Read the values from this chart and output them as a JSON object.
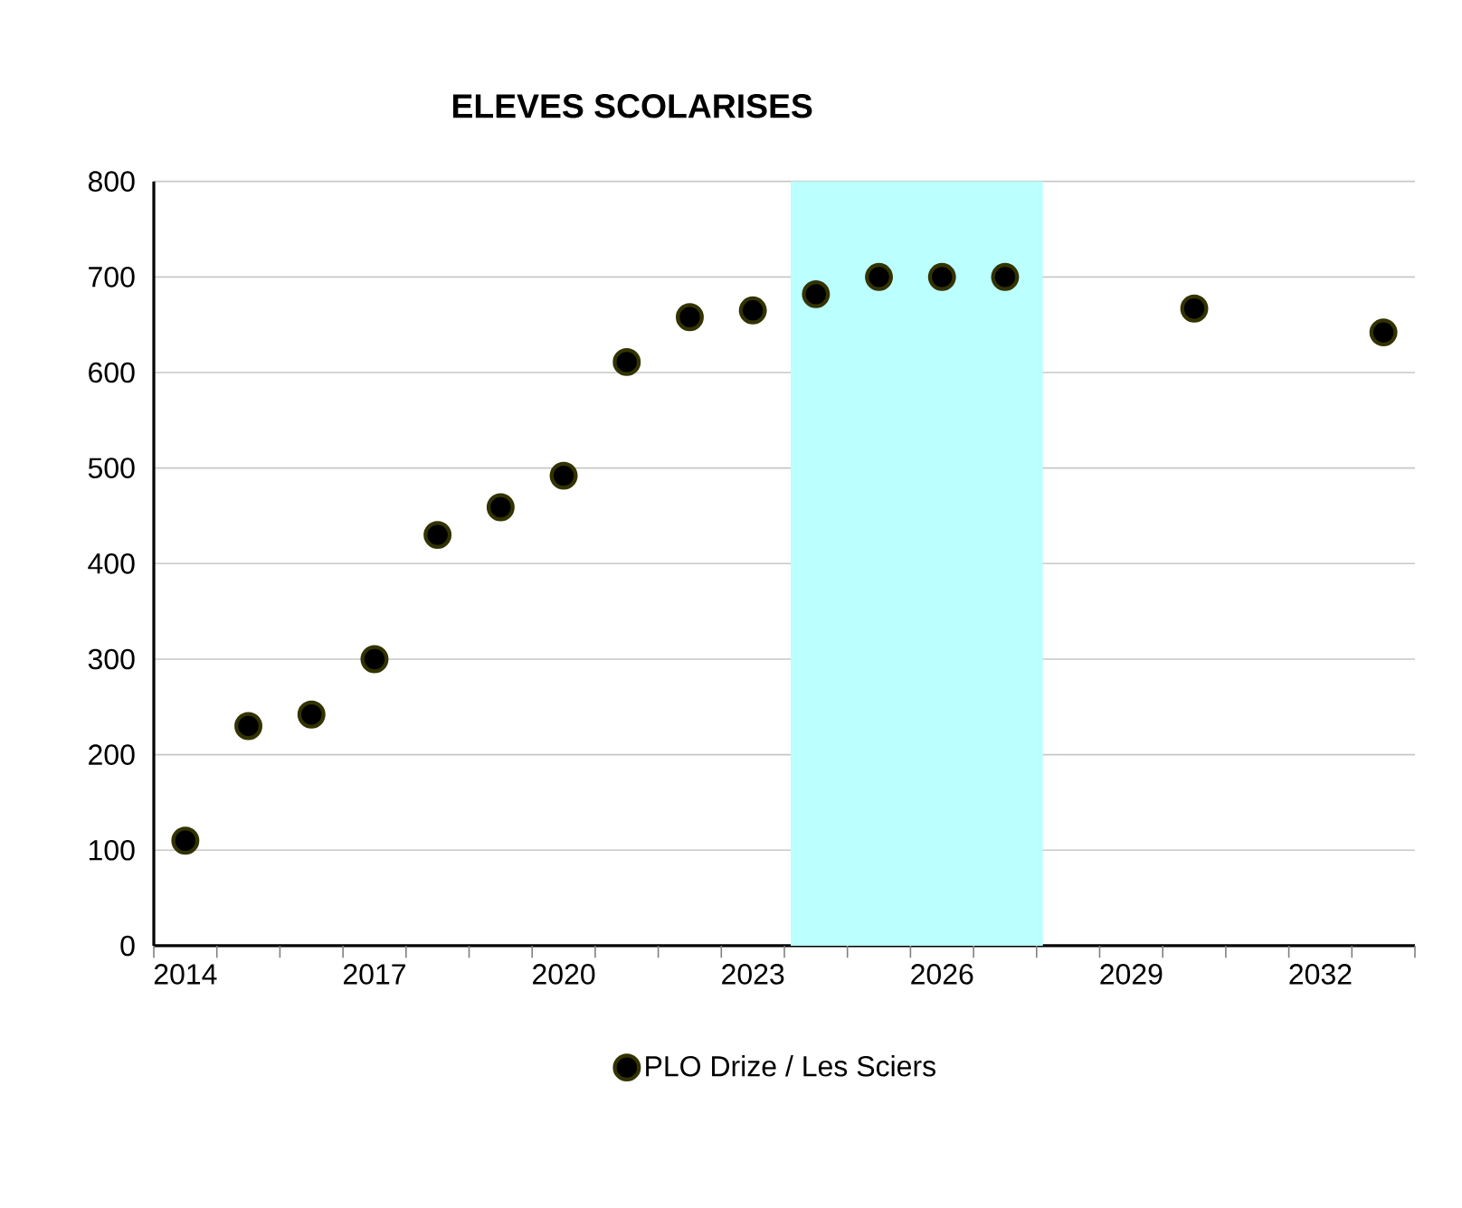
{
  "chart_data": {
    "type": "scatter",
    "title": "ELEVES SCOLARISES",
    "x": [
      2014,
      2015,
      2016,
      2017,
      2018,
      2019,
      2020,
      2021,
      2022,
      2023,
      2024,
      2025,
      2026,
      2027,
      2030,
      2033
    ],
    "series": [
      {
        "name": "PLO Drize / Les Sciers",
        "color": "#000000",
        "values": [
          110,
          230,
          242,
          300,
          430,
          459,
          492,
          611,
          658,
          665,
          682,
          700,
          700,
          700,
          667,
          642
        ]
      }
    ],
    "xlim": [
      2013.5,
      2033.5
    ],
    "xticks": [
      2014,
      2017,
      2020,
      2023,
      2026,
      2029,
      2032,
      {
        "value": 2013.5,
        "label": null
      },
      {
        "value": 2014.5,
        "label": null
      },
      {
        "value": 2015.5,
        "label": null
      },
      {
        "value": 2016.5,
        "label": null
      },
      {
        "value": 2017.5,
        "label": null
      },
      {
        "value": 2018.5,
        "label": null
      },
      {
        "value": 2019.5,
        "label": null
      },
      {
        "value": 2020.5,
        "label": null
      },
      {
        "value": 2021.5,
        "label": null
      },
      {
        "value": 2022.5,
        "label": null
      },
      {
        "value": 2023.5,
        "label": null
      },
      {
        "value": 2024.5,
        "label": null
      },
      {
        "value": 2025.5,
        "label": null
      },
      {
        "value": 2026.5,
        "label": null
      },
      {
        "value": 2027.5,
        "label": null
      },
      {
        "value": 2028.5,
        "label": null
      },
      {
        "value": 2029.5,
        "label": null
      },
      {
        "value": 2030.5,
        "label": null
      },
      {
        "value": 2031.5,
        "label": null
      },
      {
        "value": 2032.5,
        "label": null
      },
      {
        "value": 2033.5,
        "label": null
      }
    ],
    "ylim": [
      0,
      800
    ],
    "yticks": [
      0,
      100,
      200,
      300,
      400,
      500,
      600,
      700,
      800
    ],
    "bands": [
      {
        "axis": "x",
        "from": 2023.6,
        "to": 2027.6,
        "color": "#bbffff"
      }
    ],
    "grid": "y",
    "legend": "bottom",
    "marker": "circle"
  }
}
